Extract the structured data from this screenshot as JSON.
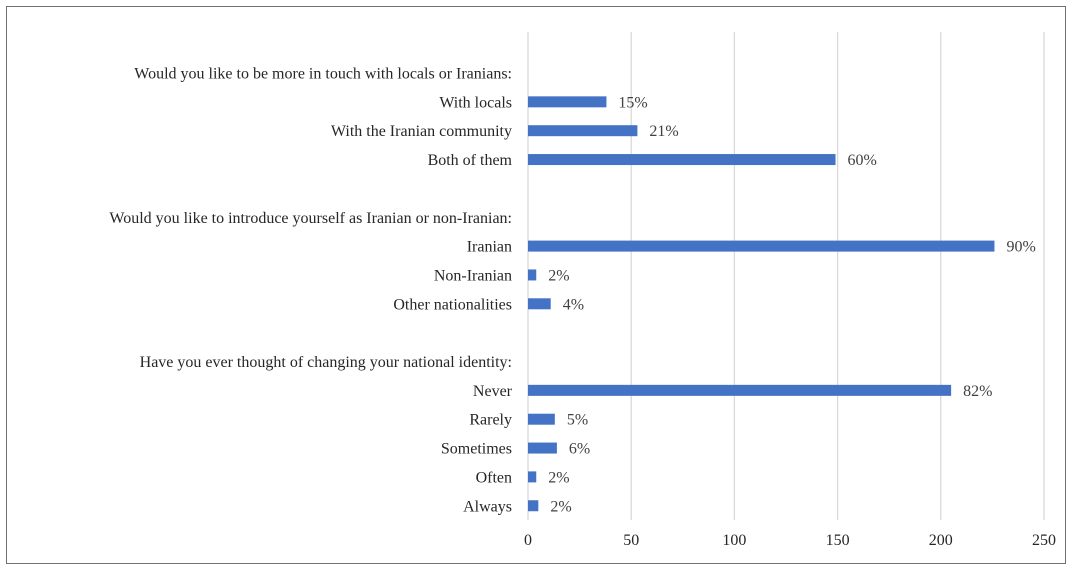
{
  "chart_data": {
    "type": "bar",
    "orientation": "horizontal",
    "xlim": [
      0,
      250
    ],
    "x_ticks": [
      "0",
      "50",
      "100",
      "150",
      "200",
      "250"
    ],
    "grid": true,
    "bar_color": "#4472c4",
    "groups": [
      {
        "question": "Would you like to be more in touch with locals or Iranians:",
        "items": [
          {
            "label": "With locals",
            "value": 38,
            "pct": "15%"
          },
          {
            "label": "With the Iranian community",
            "value": 53,
            "pct": "21%"
          },
          {
            "label": "Both of them",
            "value": 149,
            "pct": "60%"
          }
        ]
      },
      {
        "question": "Would you like to introduce yourself as Iranian or non-Iranian:",
        "items": [
          {
            "label": "Iranian",
            "value": 226,
            "pct": "90%"
          },
          {
            "label": "Non-Iranian",
            "value": 4,
            "pct": "2%"
          },
          {
            "label": "Other nationalities",
            "value": 11,
            "pct": "4%"
          }
        ]
      },
      {
        "question": "Have you ever thought of changing your national identity:",
        "items": [
          {
            "label": "Never",
            "value": 205,
            "pct": "82%"
          },
          {
            "label": "Rarely",
            "value": 13,
            "pct": "5%"
          },
          {
            "label": "Sometimes",
            "value": 14,
            "pct": "6%"
          },
          {
            "label": "Often",
            "value": 4,
            "pct": "2%"
          },
          {
            "label": "Always",
            "value": 5,
            "pct": "2%"
          }
        ]
      }
    ]
  }
}
